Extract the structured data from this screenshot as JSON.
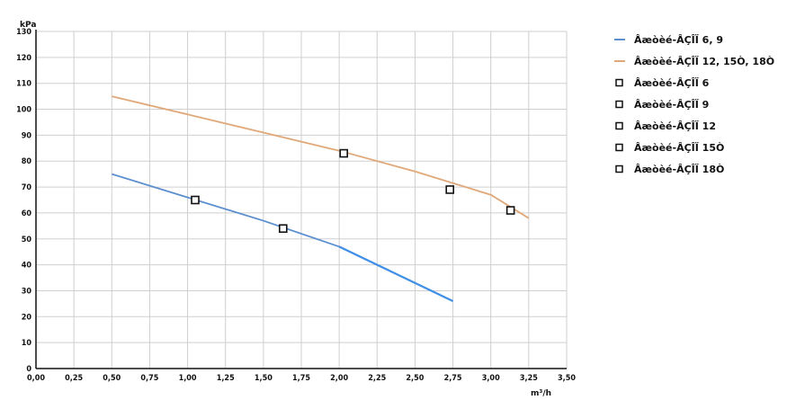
{
  "chart_data": {
    "type": "line",
    "title": "",
    "xlabel": "m³/h",
    "ylabel": "kPa",
    "xlim": [
      0,
      3.5
    ],
    "ylim": [
      0,
      130
    ],
    "x_ticks": [
      "0,00",
      "0,25",
      "0,50",
      "0,75",
      "1,00",
      "1,25",
      "1,50",
      "1,75",
      "2,00",
      "2,25",
      "2,50",
      "2,75",
      "3,00",
      "3,25",
      "3,50"
    ],
    "y_ticks": [
      "0",
      "10",
      "20",
      "30",
      "40",
      "50",
      "60",
      "70",
      "80",
      "90",
      "100",
      "110",
      "120",
      "130"
    ],
    "grid": true,
    "legend_position": "right",
    "series": [
      {
        "name": "Âæòèé-ÂÇÎÏ 6, 9",
        "kind": "line",
        "color": "#5b8fcf",
        "x": [
          0.5,
          1.0,
          1.5,
          2.0
        ],
        "y": [
          75,
          66,
          57,
          47
        ]
      },
      {
        "name": "Âæòèé-ÂÇÎÏ 12, 15Ò, 18Ò",
        "kind": "line",
        "color": "#e0a878",
        "x": [
          0.5,
          1.0,
          1.5,
          2.0,
          2.5,
          3.0,
          3.25
        ],
        "y": [
          105,
          98,
          91,
          84,
          76,
          67,
          58
        ]
      },
      {
        "name": "Âæòèé-ÂÇÎÏ 6",
        "kind": "marker",
        "x": [
          1.05
        ],
        "y": [
          65
        ]
      },
      {
        "name": "Âæòèé-ÂÇÎÏ 9",
        "kind": "marker",
        "x": [
          1.63
        ],
        "y": [
          54
        ]
      },
      {
        "name": "Âæòèé-ÂÇÎÏ 12",
        "kind": "marker",
        "x": [
          2.03
        ],
        "y": [
          83
        ]
      },
      {
        "name": "Âæòèé-ÂÇÎÏ 15Ò",
        "kind": "marker",
        "x": [
          2.73
        ],
        "y": [
          69
        ]
      },
      {
        "name": "Âæòèé-ÂÇÎÏ 18Ò",
        "kind": "marker",
        "x": [
          3.13
        ],
        "y": [
          61
        ]
      }
    ],
    "extension_line": {
      "color": "#3f8fe8",
      "x": [
        2.0,
        2.75
      ],
      "y": [
        47,
        26
      ]
    }
  }
}
